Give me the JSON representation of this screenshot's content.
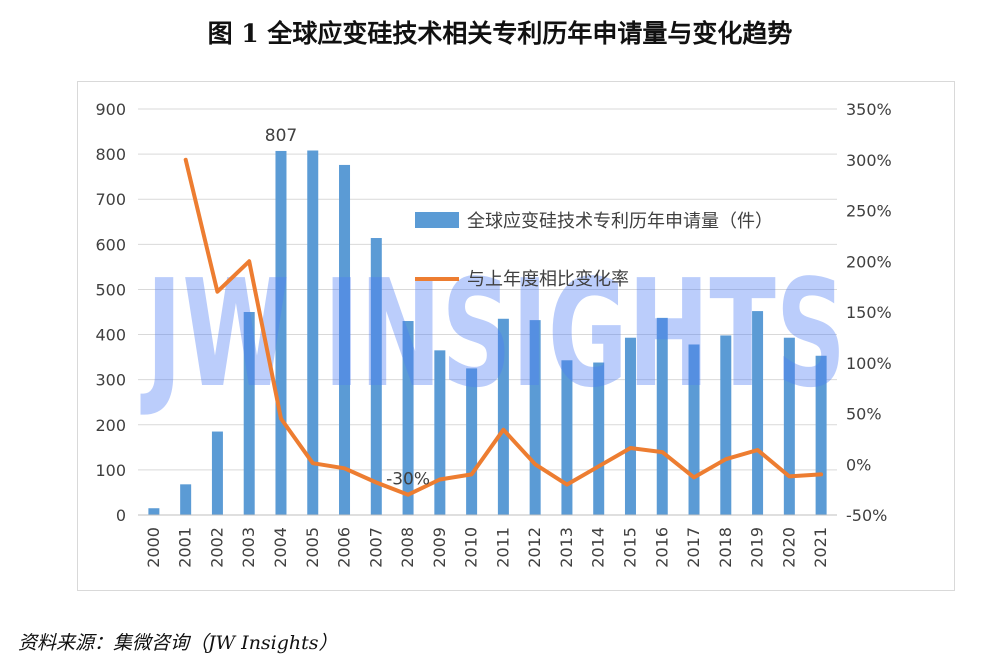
{
  "title": "图 1 全球应变硅技术相关专利历年申请量与变化趋势",
  "source": "资料来源：集微咨询（JW Insights）",
  "watermark": "JW INSIGHTS",
  "chart_data": {
    "type": "bar",
    "categories": [
      "2000",
      "2001",
      "2002",
      "2003",
      "2004",
      "2005",
      "2006",
      "2007",
      "2008",
      "2009",
      "2010",
      "2011",
      "2012",
      "2013",
      "2014",
      "2015",
      "2016",
      "2017",
      "2018",
      "2019",
      "2020",
      "2021"
    ],
    "series": [
      {
        "name": "全球应变硅技术专利历年申请量（件）",
        "type": "bar",
        "axis": "left",
        "color": "#5b9bd5",
        "values": [
          15,
          68,
          185,
          450,
          807,
          808,
          776,
          614,
          430,
          365,
          325,
          435,
          432,
          343,
          338,
          393,
          437,
          378,
          398,
          452,
          393,
          353
        ]
      },
      {
        "name": "与上年度相比变化率",
        "type": "line",
        "axis": "right",
        "color": "#ed7d31",
        "values": [
          null,
          300,
          170,
          200,
          45,
          1,
          -4,
          -18,
          -30,
          -15,
          -10,
          34,
          0,
          -20,
          -2,
          16,
          12,
          -13,
          5,
          14,
          -12,
          -10
        ]
      }
    ],
    "y_left": {
      "min": 0,
      "max": 900,
      "step": 100,
      "ticks": [
        "0",
        "100",
        "200",
        "300",
        "400",
        "500",
        "600",
        "700",
        "800",
        "900"
      ]
    },
    "y_right": {
      "min": -50,
      "max": 350,
      "step": 50,
      "ticks": [
        "-50%",
        "0%",
        "50%",
        "100%",
        "150%",
        "200%",
        "250%",
        "300%",
        "350%"
      ]
    },
    "annotations": [
      {
        "text": "807",
        "series": 0,
        "index": 4
      },
      {
        "text": "-30%",
        "series": 1,
        "index": 8
      }
    ],
    "grid": true,
    "legend": "inside-right"
  }
}
